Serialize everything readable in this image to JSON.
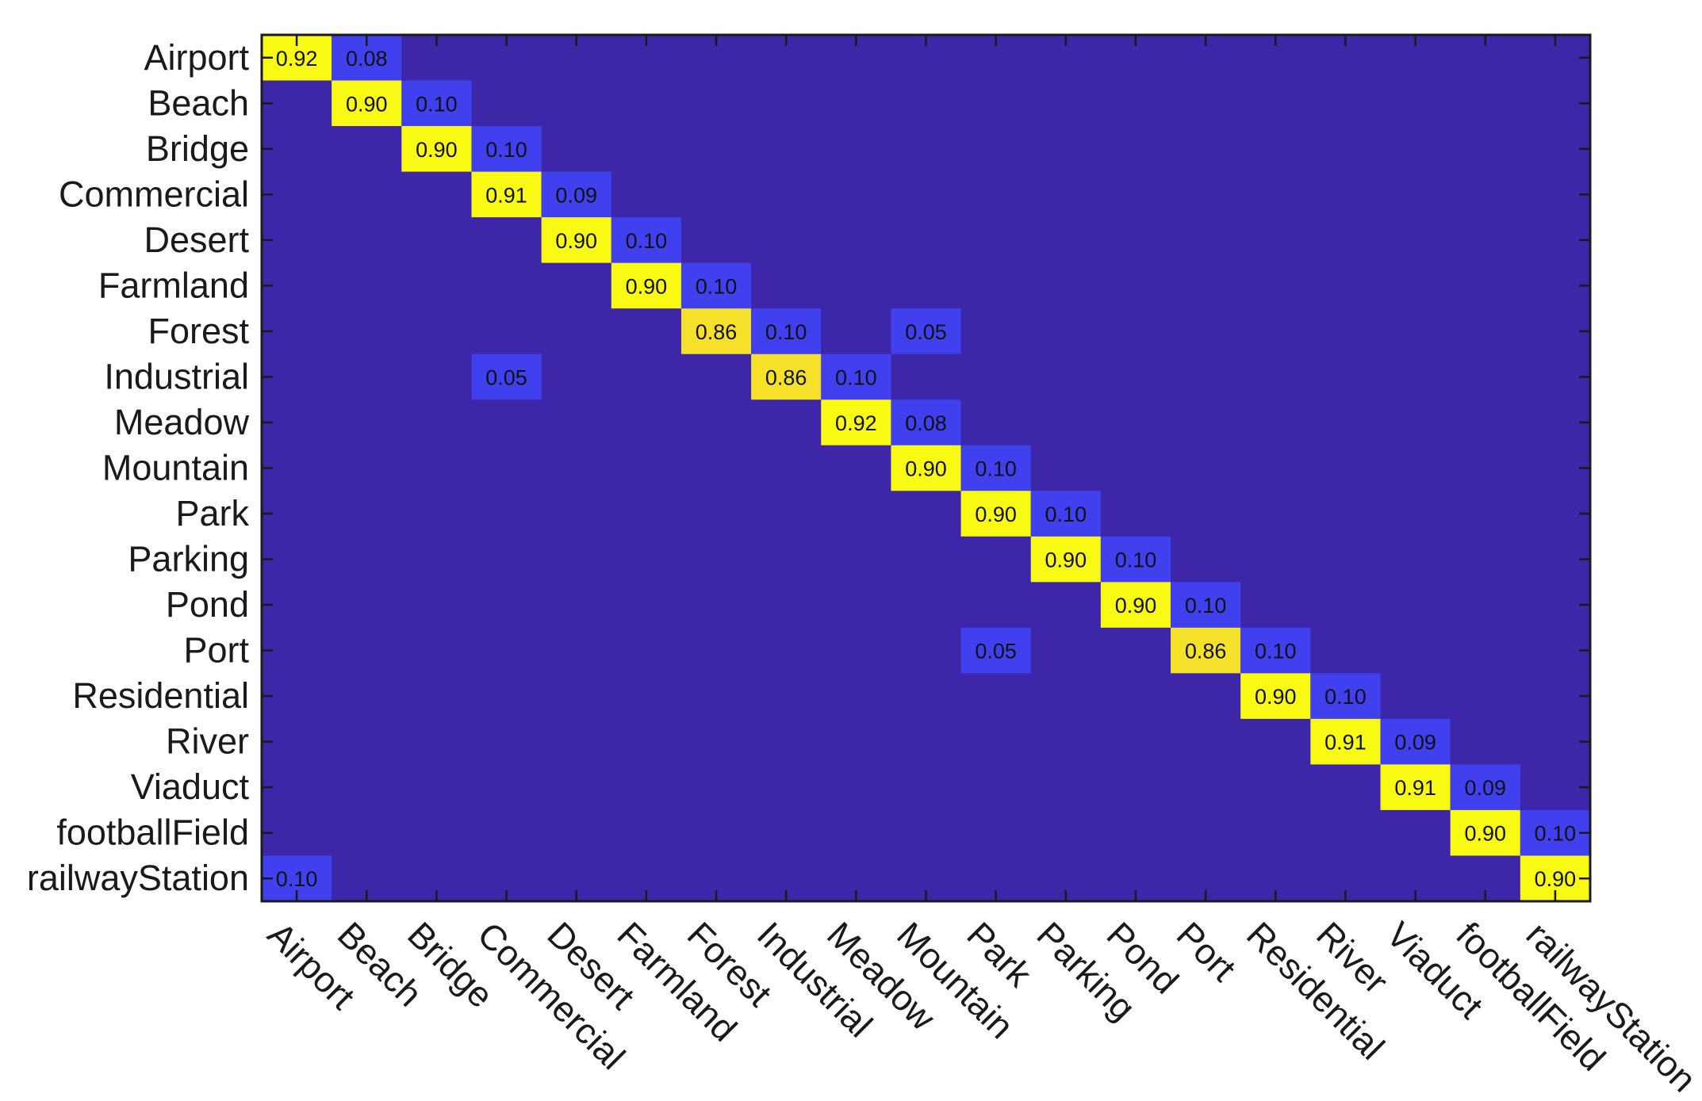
{
  "chart_data": {
    "type": "heatmap",
    "rows": [
      "Airport",
      "Beach",
      "Bridge",
      "Commercial",
      "Desert",
      "Farmland",
      "Forest",
      "Industrial",
      "Meadow",
      "Mountain",
      "Park",
      "Parking",
      "Pond",
      "Port",
      "Residential",
      "River",
      "Viaduct",
      "footballField",
      "railwayStation"
    ],
    "cols": [
      "Airport",
      "Beach",
      "Bridge",
      "Commercial",
      "Desert",
      "Farmland",
      "Forest",
      "Industrial",
      "Meadow",
      "Mountain",
      "Park",
      "Parking",
      "Pond",
      "Port",
      "Residential",
      "River",
      "Viaduct",
      "footballField",
      "railwayStation"
    ],
    "cells": [
      {
        "row": 0,
        "col": 0,
        "value": 0.92,
        "label": "0.92"
      },
      {
        "row": 0,
        "col": 1,
        "value": 0.08,
        "label": "0.08"
      },
      {
        "row": 1,
        "col": 1,
        "value": 0.9,
        "label": "0.90"
      },
      {
        "row": 1,
        "col": 2,
        "value": 0.1,
        "label": "0.10"
      },
      {
        "row": 2,
        "col": 2,
        "value": 0.9,
        "label": "0.90"
      },
      {
        "row": 2,
        "col": 3,
        "value": 0.1,
        "label": "0.10"
      },
      {
        "row": 3,
        "col": 3,
        "value": 0.91,
        "label": "0.91"
      },
      {
        "row": 3,
        "col": 4,
        "value": 0.09,
        "label": "0.09"
      },
      {
        "row": 4,
        "col": 4,
        "value": 0.9,
        "label": "0.90"
      },
      {
        "row": 4,
        "col": 5,
        "value": 0.1,
        "label": "0.10"
      },
      {
        "row": 5,
        "col": 5,
        "value": 0.9,
        "label": "0.90"
      },
      {
        "row": 5,
        "col": 6,
        "value": 0.1,
        "label": "0.10"
      },
      {
        "row": 6,
        "col": 6,
        "value": 0.86,
        "label": "0.86"
      },
      {
        "row": 6,
        "col": 7,
        "value": 0.1,
        "label": "0.10"
      },
      {
        "row": 6,
        "col": 9,
        "value": 0.05,
        "label": "0.05"
      },
      {
        "row": 7,
        "col": 3,
        "value": 0.05,
        "label": "0.05"
      },
      {
        "row": 7,
        "col": 7,
        "value": 0.86,
        "label": "0.86"
      },
      {
        "row": 7,
        "col": 8,
        "value": 0.1,
        "label": "0.10"
      },
      {
        "row": 8,
        "col": 8,
        "value": 0.92,
        "label": "0.92"
      },
      {
        "row": 8,
        "col": 9,
        "value": 0.08,
        "label": "0.08"
      },
      {
        "row": 9,
        "col": 9,
        "value": 0.9,
        "label": "0.90"
      },
      {
        "row": 9,
        "col": 10,
        "value": 0.1,
        "label": "0.10"
      },
      {
        "row": 10,
        "col": 10,
        "value": 0.9,
        "label": "0.90"
      },
      {
        "row": 10,
        "col": 11,
        "value": 0.1,
        "label": "0.10"
      },
      {
        "row": 11,
        "col": 11,
        "value": 0.9,
        "label": "0.90"
      },
      {
        "row": 11,
        "col": 12,
        "value": 0.1,
        "label": "0.10"
      },
      {
        "row": 12,
        "col": 12,
        "value": 0.9,
        "label": "0.90"
      },
      {
        "row": 12,
        "col": 13,
        "value": 0.1,
        "label": "0.10"
      },
      {
        "row": 13,
        "col": 10,
        "value": 0.05,
        "label": "0.05"
      },
      {
        "row": 13,
        "col": 13,
        "value": 0.86,
        "label": "0.86"
      },
      {
        "row": 13,
        "col": 14,
        "value": 0.1,
        "label": "0.10"
      },
      {
        "row": 14,
        "col": 14,
        "value": 0.9,
        "label": "0.90"
      },
      {
        "row": 14,
        "col": 15,
        "value": 0.1,
        "label": "0.10"
      },
      {
        "row": 15,
        "col": 15,
        "value": 0.91,
        "label": "0.91"
      },
      {
        "row": 15,
        "col": 16,
        "value": 0.09,
        "label": "0.09"
      },
      {
        "row": 16,
        "col": 16,
        "value": 0.91,
        "label": "0.91"
      },
      {
        "row": 16,
        "col": 17,
        "value": 0.09,
        "label": "0.09"
      },
      {
        "row": 17,
        "col": 17,
        "value": 0.9,
        "label": "0.90"
      },
      {
        "row": 17,
        "col": 18,
        "value": 0.1,
        "label": "0.10"
      },
      {
        "row": 18,
        "col": 0,
        "value": 0.1,
        "label": "0.10"
      },
      {
        "row": 18,
        "col": 18,
        "value": 0.9,
        "label": "0.90"
      }
    ],
    "colormap": "parula",
    "color_range": [
      0,
      0.92
    ],
    "grid": false,
    "legend": "none"
  },
  "colors": {
    "background": "#3d26a8",
    "low_cell": "#4040ee",
    "high_cell": "#f9fa14",
    "mid_high_cell": "#f5e12a",
    "axis": "#1a1a1a"
  }
}
